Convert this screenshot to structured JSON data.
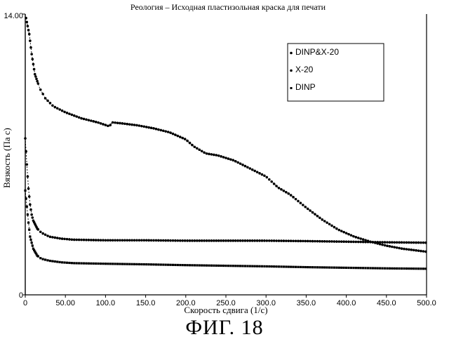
{
  "chart_data": {
    "type": "scatter",
    "title": "Реология – Исходная пластизольная краска для  печати",
    "xlabel": "Скорость сдвига (1/с)",
    "ylabel": "Вязкость (Па с)",
    "xlim": [
      0,
      500
    ],
    "ylim": [
      0,
      14
    ],
    "x_tick_labels": [
      "0",
      "50.00",
      "100.0",
      "150.0",
      "200.0",
      "250.0",
      "300.0",
      "350.0",
      "400.0",
      "450.0",
      "500.0"
    ],
    "x_tick_values": [
      0,
      50,
      100,
      150,
      200,
      250,
      300,
      350,
      400,
      450,
      500
    ],
    "y_tick_labels": [
      "0",
      "14.00"
    ],
    "y_tick_values": [
      0,
      14
    ],
    "grid": false,
    "legend_position": "top-right",
    "series": [
      {
        "name": "DINP&X-20",
        "marker": "circle",
        "points": [
          [
            1,
            13.8
          ],
          [
            5,
            13.0
          ],
          [
            8,
            12.0
          ],
          [
            12,
            11.0
          ],
          [
            18,
            10.3
          ],
          [
            25,
            9.8
          ],
          [
            35,
            9.4
          ],
          [
            50,
            9.1
          ],
          [
            70,
            8.8
          ],
          [
            90,
            8.6
          ],
          [
            105,
            8.4
          ],
          [
            108,
            8.6
          ],
          [
            120,
            8.55
          ],
          [
            140,
            8.45
          ],
          [
            160,
            8.3
          ],
          [
            180,
            8.1
          ],
          [
            200,
            7.75
          ],
          [
            210,
            7.4
          ],
          [
            225,
            7.05
          ],
          [
            240,
            6.95
          ],
          [
            260,
            6.7
          ],
          [
            280,
            6.3
          ],
          [
            300,
            5.9
          ],
          [
            315,
            5.35
          ],
          [
            330,
            5.0
          ],
          [
            350,
            4.35
          ],
          [
            370,
            3.75
          ],
          [
            390,
            3.25
          ],
          [
            410,
            2.9
          ],
          [
            430,
            2.65
          ],
          [
            450,
            2.45
          ],
          [
            470,
            2.3
          ],
          [
            490,
            2.2
          ],
          [
            500,
            2.15
          ]
        ]
      },
      {
        "name": "X-20",
        "marker": "circle",
        "points": [
          [
            0,
            7.8
          ],
          [
            2,
            6.5
          ],
          [
            4,
            5.3
          ],
          [
            6,
            4.5
          ],
          [
            8,
            4.0
          ],
          [
            10,
            3.7
          ],
          [
            15,
            3.3
          ],
          [
            20,
            3.1
          ],
          [
            30,
            2.9
          ],
          [
            45,
            2.8
          ],
          [
            60,
            2.75
          ],
          [
            100,
            2.72
          ],
          [
            150,
            2.72
          ],
          [
            200,
            2.7
          ],
          [
            250,
            2.7
          ],
          [
            300,
            2.7
          ],
          [
            350,
            2.68
          ],
          [
            400,
            2.65
          ],
          [
            450,
            2.62
          ],
          [
            500,
            2.6
          ]
        ]
      },
      {
        "name": "DINP",
        "marker": "square",
        "points": [
          [
            0,
            5.2
          ],
          [
            2,
            4.4
          ],
          [
            4,
            3.6
          ],
          [
            6,
            2.9
          ],
          [
            10,
            2.3
          ],
          [
            15,
            1.95
          ],
          [
            20,
            1.8
          ],
          [
            30,
            1.7
          ],
          [
            45,
            1.62
          ],
          [
            60,
            1.58
          ],
          [
            100,
            1.55
          ],
          [
            150,
            1.52
          ],
          [
            200,
            1.48
          ],
          [
            250,
            1.45
          ],
          [
            300,
            1.42
          ],
          [
            350,
            1.38
          ],
          [
            400,
            1.35
          ],
          [
            450,
            1.32
          ],
          [
            500,
            1.3
          ]
        ]
      }
    ]
  },
  "caption": "ФИГ. 18"
}
